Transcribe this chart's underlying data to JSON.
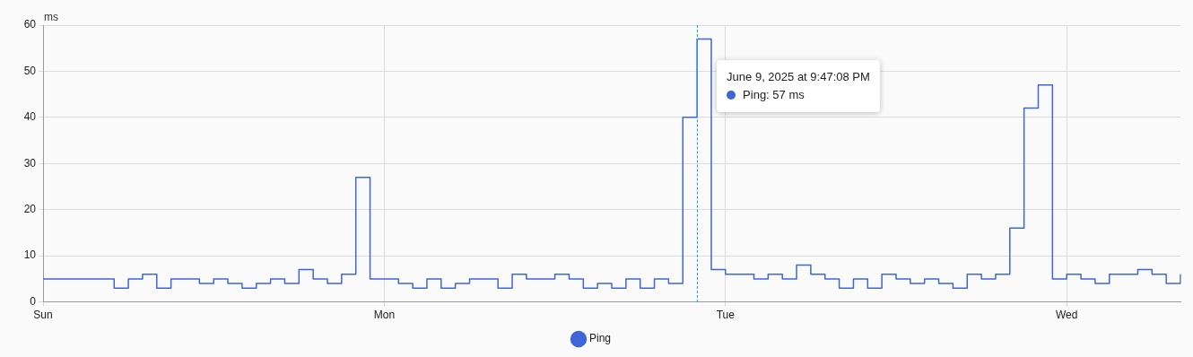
{
  "chart_data": {
    "type": "step",
    "ylabel": "ms",
    "categories": [
      "Sun",
      null,
      null,
      null,
      null,
      null,
      null,
      null,
      null,
      null,
      null,
      null,
      null,
      null,
      null,
      null,
      null,
      null,
      null,
      null,
      null,
      null,
      null,
      null,
      "Mon",
      null,
      null,
      null,
      null,
      null,
      null,
      null,
      null,
      null,
      null,
      null,
      null,
      null,
      null,
      null,
      null,
      null,
      null,
      null,
      null,
      null,
      null,
      null,
      "Tue",
      null,
      null,
      null,
      null,
      null,
      null,
      null,
      null,
      null,
      null,
      null,
      null,
      null,
      null,
      null,
      null,
      null,
      null,
      null,
      null,
      null,
      null,
      null,
      "Wed",
      null,
      null,
      null,
      null,
      null,
      null,
      null,
      null
    ],
    "series": [
      {
        "name": "Ping",
        "color": "#3e66d9",
        "values": [
          5,
          5,
          5,
          5,
          5,
          3,
          5,
          6,
          3,
          5,
          5,
          4,
          5,
          4,
          3,
          4,
          5,
          4,
          7,
          5,
          4,
          6,
          27,
          5,
          5,
          4,
          3,
          5,
          3,
          4,
          5,
          5,
          3,
          6,
          5,
          5,
          6,
          5,
          3,
          4,
          3,
          5,
          3,
          5,
          4,
          40,
          57,
          7,
          6,
          6,
          5,
          6,
          5,
          8,
          6,
          5,
          3,
          5,
          3,
          6,
          5,
          4,
          5,
          4,
          3,
          6,
          5,
          6,
          16,
          42,
          47,
          5,
          6,
          5,
          4,
          6,
          6,
          7,
          6,
          4,
          6
        ]
      }
    ],
    "ylim": [
      0,
      60
    ],
    "yticks": [
      0,
      10,
      20,
      30,
      40,
      50,
      60
    ],
    "grid": true,
    "legend": "bottom",
    "marker": "none",
    "line_style": "solid",
    "annotations": [
      "June 9, 2025 at 9:47:08 PM",
      "Ping: 57 ms"
    ]
  }
}
